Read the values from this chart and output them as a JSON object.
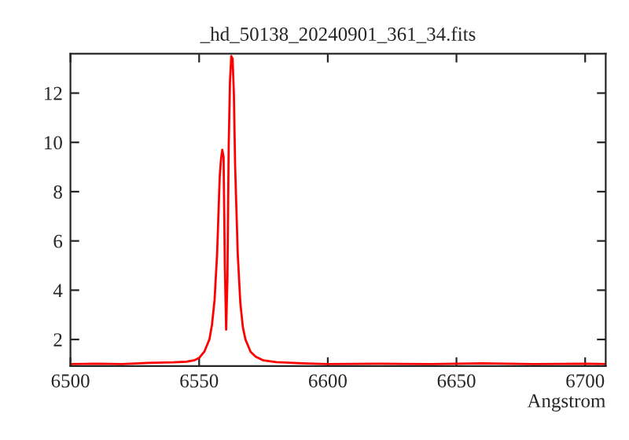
{
  "chart_data": {
    "type": "line",
    "title": "_hd_50138_20240901_361_34.fits",
    "xlabel": "Angstrom",
    "x": [
      6500,
      6510,
      6520,
      6530,
      6540,
      6545,
      6548,
      6550,
      6552,
      6554,
      6555,
      6556,
      6557,
      6558,
      6558.5,
      6559,
      6559.5,
      6560,
      6560.5,
      6561,
      6561.5,
      6562,
      6562.5,
      6563,
      6563.5,
      6564,
      6565,
      6566,
      6567,
      6568,
      6570,
      6572,
      6575,
      6580,
      6590,
      6600,
      6620,
      6640,
      6660,
      6680,
      6700,
      6708
    ],
    "series": [
      {
        "color": "#ff0000",
        "values": [
          1.0,
          1.02,
          1.0,
          1.05,
          1.07,
          1.1,
          1.15,
          1.25,
          1.5,
          2.0,
          2.6,
          3.6,
          5.5,
          8.6,
          9.3,
          9.7,
          9.4,
          5.0,
          2.4,
          4.5,
          9.9,
          12.5,
          13.5,
          13.4,
          12.0,
          9.0,
          5.5,
          3.5,
          2.5,
          2.0,
          1.5,
          1.3,
          1.15,
          1.08,
          1.03,
          1.0,
          1.02,
          1.0,
          1.03,
          1.0,
          1.02,
          1.0
        ]
      }
    ],
    "xlim": [
      6500,
      6708
    ],
    "ylim": [
      0.92,
      13.6
    ],
    "xticks": [
      6500,
      6550,
      6600,
      6650,
      6700
    ],
    "yticks": [
      2,
      4,
      6,
      8,
      10,
      12
    ],
    "grid": false,
    "legend": false,
    "marker": "none",
    "line_style": "solid"
  }
}
